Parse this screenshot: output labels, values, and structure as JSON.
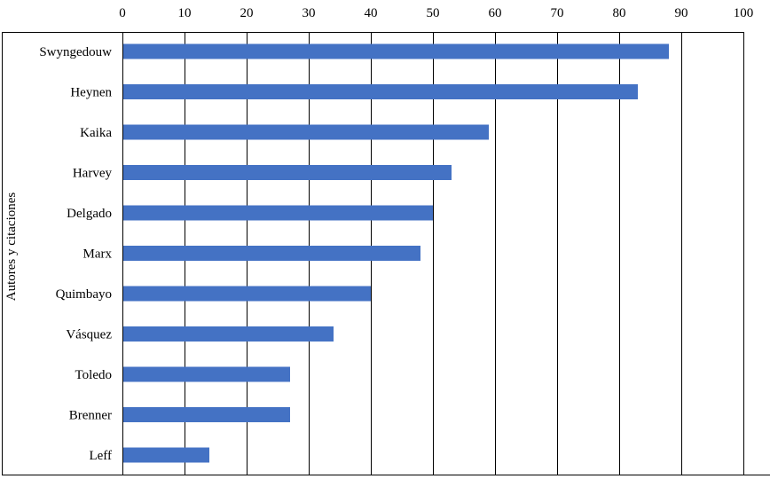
{
  "chart_data": {
    "type": "bar",
    "orientation": "horizontal",
    "categories": [
      "Swyngedouw",
      "Heynen",
      "Kaika",
      "Harvey",
      "Delgado",
      "Marx",
      "Quimbayo",
      "Vásquez",
      "Toledo",
      "Brenner",
      "Leff"
    ],
    "values": [
      88,
      83,
      59,
      53,
      50,
      48,
      40,
      34,
      27,
      27,
      14
    ],
    "xlim": [
      0,
      100
    ],
    "xticks": [
      0,
      10,
      20,
      30,
      40,
      50,
      60,
      70,
      80,
      90,
      100
    ],
    "xtick_position": "top",
    "title": "",
    "xlabel": "",
    "ylabel": "Autores y citaciones",
    "grid": "vertical",
    "legend": "none",
    "colors": {
      "bar": "#4472c4",
      "grid": "#000000",
      "text": "#000000"
    }
  }
}
